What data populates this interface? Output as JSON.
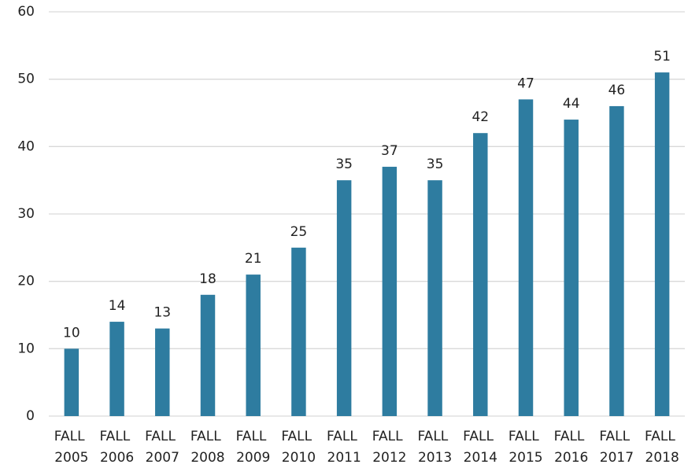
{
  "chart_data": {
    "type": "bar",
    "categories": [
      "FALL 2005",
      "FALL 2006",
      "FALL 2007",
      "FALL 2008",
      "FALL 2009",
      "FALL 2010",
      "FALL 2011",
      "FALL 2012",
      "FALL 2013",
      "FALL 2014",
      "FALL 2015",
      "FALL 2016",
      "FALL 2017",
      "FALL 2018"
    ],
    "values": [
      10,
      14,
      13,
      18,
      21,
      25,
      35,
      37,
      35,
      42,
      47,
      44,
      46,
      51
    ],
    "color": "#2e7ca0",
    "ylim": [
      0,
      60
    ],
    "yticks": [
      0,
      10,
      20,
      30,
      40,
      50,
      60
    ],
    "grid": true
  }
}
